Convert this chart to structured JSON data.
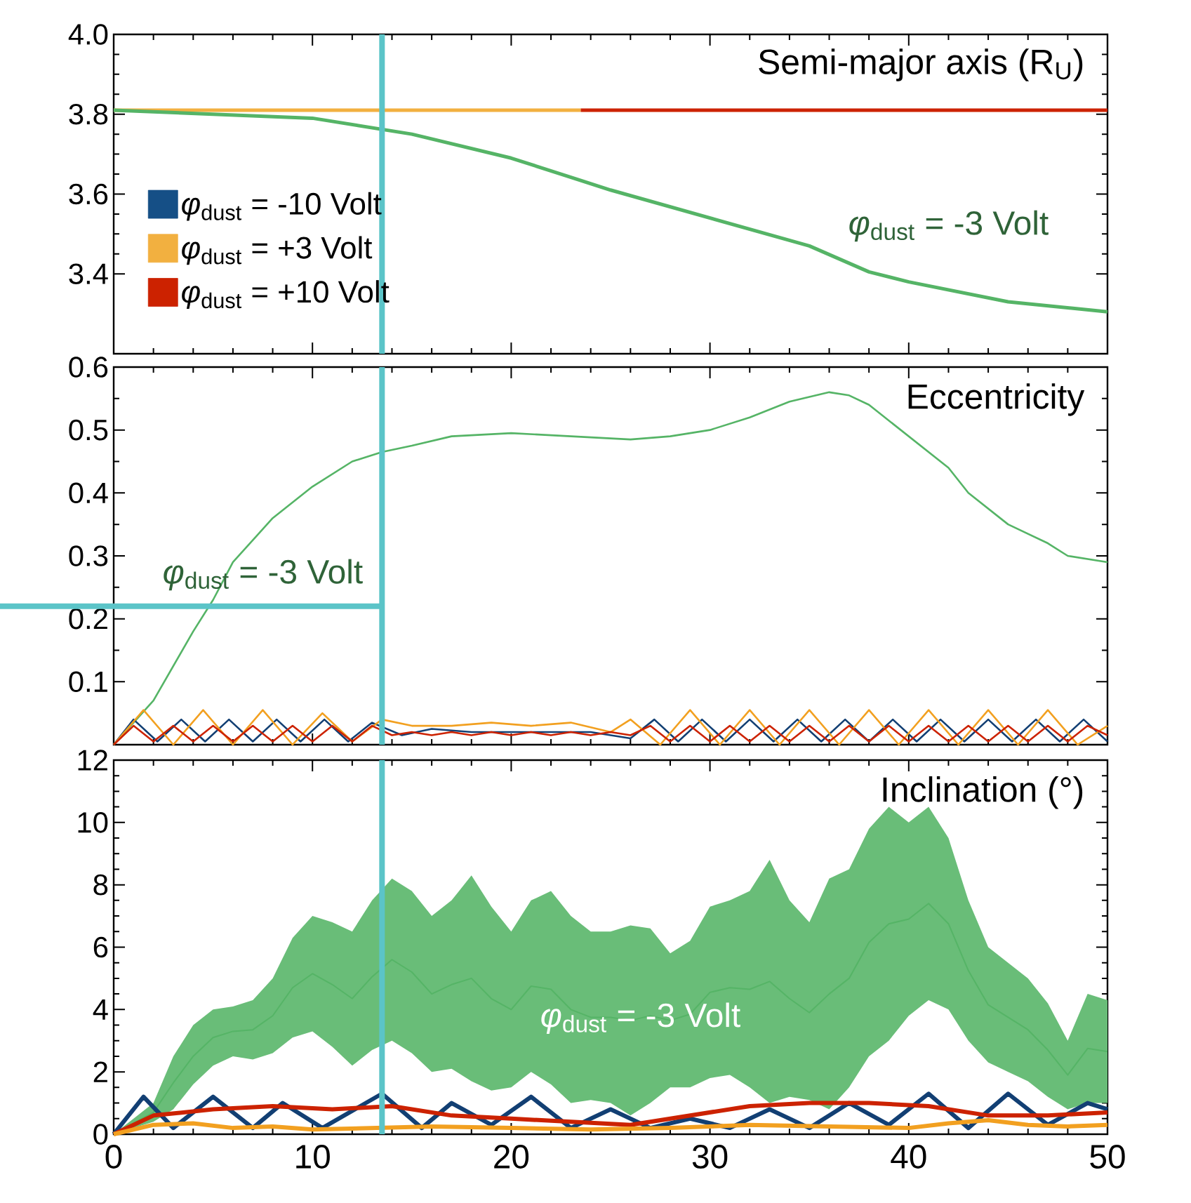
{
  "chart_data": [
    {
      "type": "line",
      "title": "Semi-major axis (R$_{U}$)",
      "xlim": [
        0,
        50
      ],
      "xticks": [
        0,
        10,
        20,
        30,
        40,
        50
      ],
      "ylim": [
        3.2,
        4.0
      ],
      "yticks": [
        3.4,
        3.6,
        3.8,
        {
          "value": 4.0,
          "label": "4.0"
        }
      ],
      "tick_labels": "y",
      "legend": "left",
      "annotations": [
        "*φ*$_{dust}$ = -3 Volt"
      ],
      "ref_lines": [
        {
          "axis": "x",
          "value": 13.5,
          "color": "#5bc4c8"
        }
      ],
      "series": [
        {
          "name": "*φ*$_{dust}$ = -10 Volt",
          "color": "#154f86",
          "values": [
            null
          ]
        },
        {
          "name": "*φ*$_{dust}$ = +3 Volt",
          "color": "#f2b040",
          "x": [
            0,
            23.5
          ],
          "values": [
            3.81,
            3.81
          ]
        },
        {
          "name": "*φ*$_{dust}$ = +10 Volt",
          "color": "#cc2200",
          "x": [
            23.5,
            50
          ],
          "values": [
            3.81,
            3.81
          ]
        },
        {
          "color": "#55b466",
          "x": [
            0,
            5,
            10,
            15,
            20,
            25,
            30,
            35,
            38,
            40,
            45,
            50
          ],
          "values": [
            3.81,
            3.8,
            3.79,
            3.75,
            3.69,
            3.61,
            3.54,
            3.47,
            3.405,
            3.38,
            3.33,
            3.305
          ]
        }
      ]
    },
    {
      "type": "line",
      "title": "Eccentricity",
      "xlim": [
        0,
        50
      ],
      "xticks": [
        0,
        10,
        20,
        30,
        40,
        50
      ],
      "ylim": [
        0,
        0.6
      ],
      "yticks": [
        0.1,
        0.2,
        0.3,
        0.4,
        0.5,
        0.6
      ],
      "tick_labels": "y",
      "annotations": [
        "*φ*$_{dust}$ = -3 Volt"
      ],
      "ref_lines": [
        {
          "axis": "x",
          "value": 13.5,
          "color": "#5bc4c8"
        },
        {
          "axis": "y",
          "value": 0.22,
          "color": "#5bc4c8"
        }
      ],
      "series": [
        {
          "color": "#55b466",
          "x": [
            0,
            2,
            4,
            5,
            6,
            8,
            10,
            12,
            13.5,
            15,
            17,
            20,
            23,
            26,
            28,
            30,
            32,
            34,
            36,
            37,
            38,
            40,
            42,
            43,
            45,
            47,
            48,
            50
          ],
          "values": [
            0,
            0.07,
            0.18,
            0.23,
            0.29,
            0.36,
            0.41,
            0.45,
            0.465,
            0.475,
            0.49,
            0.495,
            0.49,
            0.485,
            0.49,
            0.5,
            0.52,
            0.545,
            0.56,
            0.555,
            0.54,
            0.49,
            0.44,
            0.4,
            0.35,
            0.32,
            0.3,
            0.29
          ]
        },
        {
          "color": "#123f73",
          "x": [
            0,
            1,
            2.2,
            3.4,
            4.6,
            5.8,
            7,
            8.2,
            9.4,
            10.6,
            11.8,
            13,
            14.5,
            16,
            18,
            20,
            22,
            24,
            26,
            27.2,
            28.4,
            29.6,
            30.8,
            32,
            33.2,
            34.4,
            35.6,
            36.8,
            38,
            39.2,
            40.4,
            41.6,
            42.8,
            44,
            45.2,
            46.4,
            47.6,
            48.8,
            50
          ],
          "values": [
            0,
            0.04,
            0.005,
            0.04,
            0.005,
            0.04,
            0.005,
            0.04,
            0.005,
            0.04,
            0.005,
            0.035,
            0.015,
            0.025,
            0.02,
            0.02,
            0.02,
            0.02,
            0.01,
            0.04,
            0.005,
            0.04,
            0.005,
            0.04,
            0.005,
            0.04,
            0.005,
            0.04,
            0.005,
            0.04,
            0.005,
            0.04,
            0.005,
            0.04,
            0.005,
            0.04,
            0.005,
            0.04,
            0.005
          ]
        },
        {
          "color": "#f2a020",
          "x": [
            0,
            1.5,
            3,
            4.5,
            6,
            7.5,
            9,
            10.5,
            12,
            13.5,
            15,
            17,
            19,
            21,
            23,
            25,
            26,
            27.5,
            29,
            30.5,
            32,
            33.5,
            35,
            36.5,
            38,
            39.5,
            41,
            42.5,
            44,
            45.5,
            47,
            48.5,
            50
          ],
          "values": [
            0,
            0.055,
            0,
            0.055,
            0,
            0.055,
            0,
            0.05,
            0.005,
            0.04,
            0.03,
            0.03,
            0.035,
            0.03,
            0.035,
            0.02,
            0.04,
            0,
            0.055,
            0,
            0.055,
            0,
            0.055,
            0,
            0.055,
            0,
            0.055,
            0,
            0.055,
            0,
            0.055,
            0,
            0.03
          ]
        },
        {
          "color": "#cc2200",
          "x": [
            0,
            1,
            2,
            3,
            4,
            5,
            6,
            7,
            8,
            9,
            10,
            11,
            12,
            13,
            14,
            15,
            16,
            17,
            18,
            19,
            20,
            21,
            22,
            23,
            24,
            25,
            26,
            27,
            28,
            29,
            30,
            31,
            32,
            33,
            34,
            35,
            36,
            37,
            38,
            39,
            40,
            41,
            42,
            43,
            44,
            45,
            46,
            47,
            48,
            49,
            50
          ],
          "values": [
            0,
            0.03,
            0.005,
            0.03,
            0.005,
            0.03,
            0.005,
            0.03,
            0.005,
            0.03,
            0.005,
            0.03,
            0.005,
            0.03,
            0.015,
            0.02,
            0.015,
            0.02,
            0.015,
            0.02,
            0.015,
            0.02,
            0.015,
            0.02,
            0.015,
            0.02,
            0.015,
            0.03,
            0.005,
            0.03,
            0.005,
            0.03,
            0.005,
            0.03,
            0.005,
            0.03,
            0.005,
            0.03,
            0.005,
            0.03,
            0.005,
            0.03,
            0.005,
            0.03,
            0.005,
            0.03,
            0.005,
            0.03,
            0.005,
            0.03,
            0.015
          ]
        }
      ]
    },
    {
      "type": "line",
      "title": "Inclination (°)",
      "xlim": [
        0,
        50
      ],
      "xticks": [
        0,
        10,
        20,
        30,
        40,
        50
      ],
      "ylim": [
        0,
        12
      ],
      "yticks": [
        0,
        2,
        4,
        6,
        8,
        10,
        12
      ],
      "annotations": [
        "*φ*$_{dust}$ = -3 Volt"
      ],
      "ref_lines": [
        {
          "axis": "x",
          "value": 13.5,
          "color": "#5bc4c8"
        }
      ],
      "series": [
        {
          "color": "#55b466",
          "x": [
            0,
            2,
            3,
            4,
            5,
            6,
            7,
            8,
            9,
            10,
            11,
            12,
            13,
            14,
            15,
            16,
            17,
            18,
            19,
            20,
            21,
            22,
            23,
            24,
            25,
            26,
            27,
            28,
            29,
            30,
            31,
            32,
            33,
            34,
            35,
            36,
            37,
            38,
            39,
            40,
            41,
            42,
            43,
            44,
            45,
            46,
            47,
            48,
            49,
            50
          ],
          "values": [
            0,
            0.7,
            1.65,
            2.5,
            3.1,
            3.3,
            3.35,
            3.8,
            4.7,
            5.15,
            4.8,
            4.35,
            5.05,
            5.6,
            5.2,
            4.5,
            4.8,
            5.0,
            4.35,
            4.0,
            4.75,
            4.65,
            4.0,
            3.75,
            3.75,
            3.65,
            3.8,
            3.65,
            3.85,
            4.55,
            4.7,
            4.65,
            4.9,
            4.35,
            3.9,
            4.5,
            5.0,
            6.15,
            6.75,
            6.9,
            7.4,
            6.75,
            5.25,
            4.15,
            3.75,
            3.35,
            2.7,
            1.9,
            2.75,
            2.65
          ],
          "upper": [
            0,
            1.0,
            2.5,
            3.5,
            4.0,
            4.1,
            4.3,
            5.0,
            6.3,
            7.0,
            6.8,
            6.5,
            7.5,
            8.2,
            7.8,
            7.0,
            7.5,
            8.3,
            7.3,
            6.5,
            7.5,
            7.8,
            7.0,
            6.5,
            6.5,
            6.7,
            6.6,
            5.8,
            6.2,
            7.3,
            7.5,
            7.8,
            8.8,
            7.5,
            6.8,
            8.2,
            8.5,
            9.8,
            10.5,
            10.0,
            10.5,
            9.5,
            7.5,
            6.0,
            5.5,
            5.0,
            4.2,
            3.0,
            4.5,
            4.3
          ],
          "lower": [
            0,
            0.4,
            0.8,
            1.6,
            2.2,
            2.5,
            2.4,
            2.6,
            3.1,
            3.3,
            2.8,
            2.2,
            2.7,
            3.0,
            2.6,
            2.0,
            2.1,
            1.7,
            1.4,
            1.5,
            2.0,
            1.6,
            1.0,
            1.1,
            1.0,
            0.6,
            1.0,
            1.5,
            1.5,
            1.8,
            1.9,
            1.5,
            1.0,
            1.2,
            1.1,
            0.8,
            1.5,
            2.5,
            3.0,
            3.8,
            4.3,
            4.0,
            3.0,
            2.3,
            2.0,
            1.7,
            1.2,
            0.8,
            1.0,
            1.0
          ]
        },
        {
          "color": "#123f73",
          "x": [
            0,
            1.5,
            3,
            5,
            7,
            8.5,
            10.5,
            13.5,
            15.5,
            17,
            19,
            21,
            23,
            25,
            27,
            29,
            31,
            33,
            35,
            37,
            39,
            41,
            43,
            45,
            47,
            49,
            50
          ],
          "values": [
            0,
            1.2,
            0.2,
            1.2,
            0.2,
            1.0,
            0.2,
            1.3,
            0.2,
            1.0,
            0.3,
            1.2,
            0.2,
            0.8,
            0.2,
            0.5,
            0.2,
            0.8,
            0.2,
            1.0,
            0.3,
            1.3,
            0.2,
            1.3,
            0.3,
            1.0,
            0.8
          ]
        },
        {
          "color": "#cc2200",
          "x": [
            0,
            2,
            5,
            8,
            11,
            14,
            17,
            20,
            23,
            26,
            29,
            32,
            35,
            38,
            41,
            44,
            47,
            50
          ],
          "values": [
            0,
            0.6,
            0.8,
            0.9,
            0.8,
            0.9,
            0.6,
            0.5,
            0.4,
            0.3,
            0.6,
            0.9,
            1.0,
            1.0,
            0.9,
            0.6,
            0.6,
            0.7
          ]
        },
        {
          "color": "#f2a020",
          "x": [
            0,
            2,
            4,
            6,
            8,
            10,
            13,
            16,
            20,
            24,
            28,
            32,
            36,
            40,
            42,
            44,
            46,
            48,
            50
          ],
          "values": [
            0,
            0.3,
            0.35,
            0.2,
            0.25,
            0.15,
            0.2,
            0.25,
            0.2,
            0.15,
            0.2,
            0.3,
            0.25,
            0.2,
            0.35,
            0.45,
            0.3,
            0.25,
            0.3
          ]
        }
      ]
    }
  ]
}
